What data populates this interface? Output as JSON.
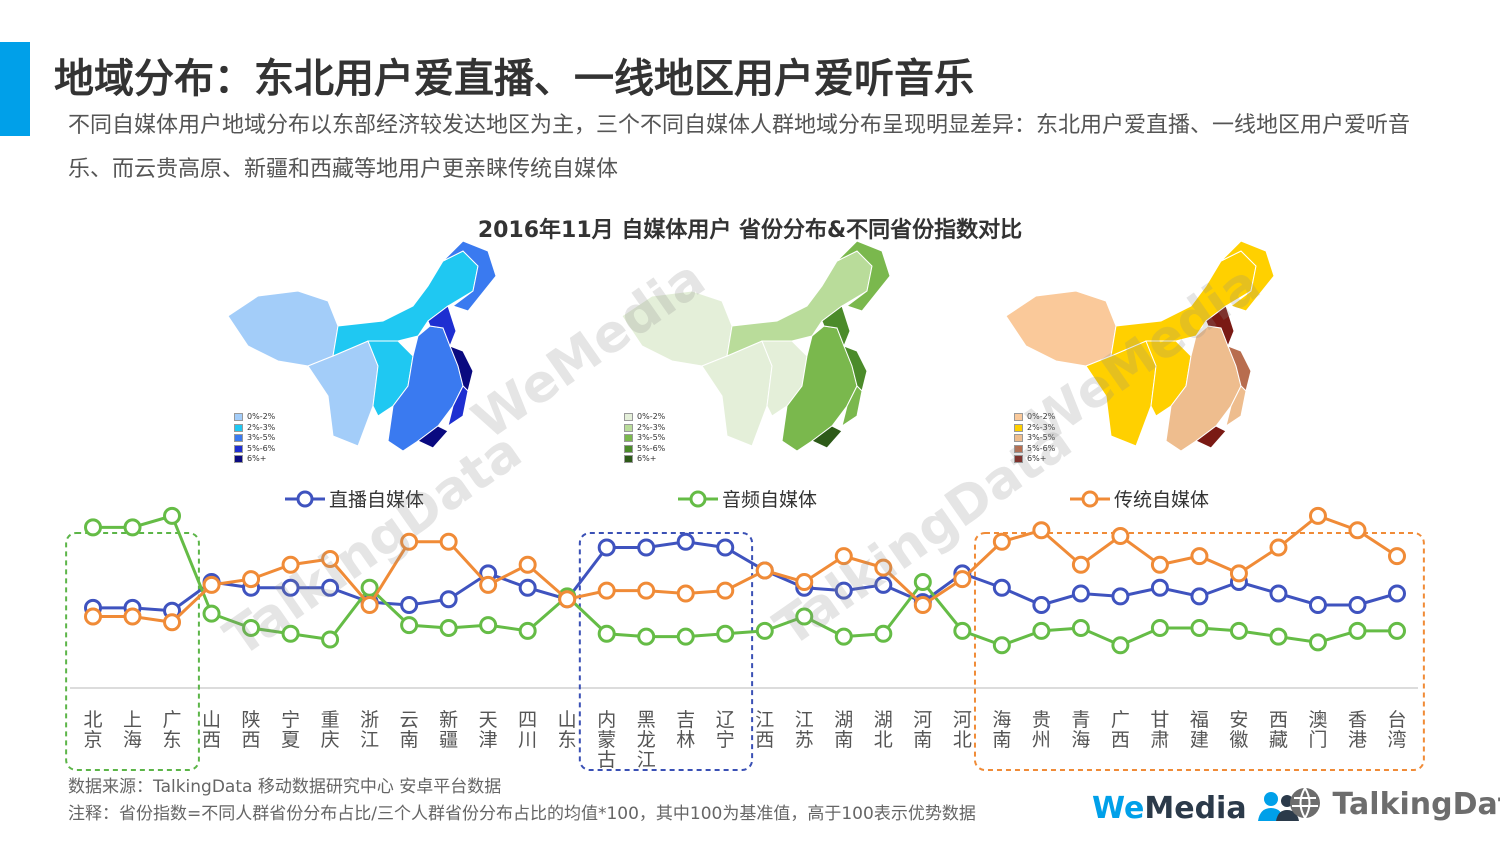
{
  "header": {
    "title": "地域分布：东北用户爱直播、一线地区用户爱听音乐",
    "subtitle": "不同自媒体用户地域分布以东部经济较发达地区为主，三个不同自媒体人群地域分布呈现明显差异：东北用户爱直播、一线地区用户爱听音乐、而云贵高原、新疆和西藏等地用户更亲睐传统自媒体"
  },
  "maps": [
    {
      "legend": [
        "0%-2%",
        "2%-3%",
        "3%-5%",
        "5%-6%",
        "6%+"
      ],
      "colors": [
        "#a3cdf9",
        "#1fc8f2",
        "#3a7af0",
        "#1e2fd1",
        "#0a0a80"
      ]
    },
    {
      "legend": [
        "0%-2%",
        "2%-3%",
        "3%-5%",
        "5%-6%",
        "6%+"
      ],
      "colors": [
        "#e4efd9",
        "#b9dc9a",
        "#7ab84d",
        "#4b8b2a",
        "#2d5a18"
      ]
    },
    {
      "legend": [
        "0%-2%",
        "2%-3%",
        "3%-5%",
        "5%-6%",
        "6%+"
      ],
      "colors": [
        "#fac99a",
        "#ffd000",
        "#eebd8e",
        "#b86d4e",
        "#7a1a14"
      ]
    }
  ],
  "watermarks": [
    "WeMedia",
    "TalkingData"
  ],
  "chart_data": {
    "type": "line",
    "title": "2016年11月 自媒体用户 省份分布&不同省份指数对比",
    "categories": [
      "北京",
      "上海",
      "广东",
      "山西",
      "陕西",
      "宁夏",
      "重庆",
      "浙江",
      "云南",
      "新疆",
      "天津",
      "四川",
      "山东",
      "内蒙古",
      "黑龙江",
      "吉林",
      "辽宁",
      "江西",
      "江苏",
      "湖南",
      "湖北",
      "河南",
      "河北",
      "海南",
      "贵州",
      "青海",
      "广西",
      "甘肃",
      "福建",
      "安徽",
      "西藏",
      "澳门",
      "香港",
      "台湾"
    ],
    "series": [
      {
        "name": "直播自媒体",
        "color": "#3f53bf",
        "values": [
          99,
          99,
          98,
          108,
          106,
          106,
          106,
          101,
          100,
          102,
          111,
          106,
          102,
          120,
          120,
          122,
          120,
          112,
          106,
          105,
          107,
          101,
          111,
          106,
          100,
          104,
          103,
          106,
          103,
          108,
          104,
          100,
          100,
          104
        ]
      },
      {
        "name": "音频自媒体",
        "color": "#65bc46",
        "values": [
          127,
          127,
          131,
          97,
          92,
          90,
          88,
          106,
          93,
          92,
          93,
          91,
          103,
          90,
          89,
          89,
          90,
          91,
          96,
          89,
          90,
          108,
          91,
          86,
          91,
          92,
          86,
          92,
          92,
          91,
          89,
          87,
          91,
          91
        ]
      },
      {
        "name": "传统自媒体",
        "color": "#f08b37",
        "values": [
          96,
          96,
          94,
          107,
          109,
          114,
          116,
          100,
          122,
          122,
          107,
          114,
          102,
          105,
          105,
          104,
          105,
          112,
          108,
          117,
          113,
          100,
          109,
          122,
          126,
          114,
          124,
          114,
          117,
          111,
          120,
          131,
          126,
          117
        ]
      }
    ],
    "ylim": [
      60,
      140
    ],
    "legend_position": "top",
    "highlight_groups": [
      {
        "from": 0,
        "to": 2,
        "color": "#5cb548"
      },
      {
        "from": 13,
        "to": 16,
        "color": "#3a50b5"
      },
      {
        "from": 23,
        "to": 33,
        "color": "#f08b37"
      }
    ]
  },
  "footer": {
    "source": "数据来源：TalkingData 移动数据研究中心 安卓平台数据",
    "note": "注释：省份指数=不同人群省份分布占比/三个人群省份分布占比的均值*100，其中100为基准值，高于100表示优势数据"
  },
  "logos": {
    "wemedia_we": "We",
    "wemedia_media": "Media",
    "talkingdata": "TalkingData",
    "wemedia_color_we": "#00a0e9",
    "wemedia_color_media": "#2b3a4a"
  }
}
